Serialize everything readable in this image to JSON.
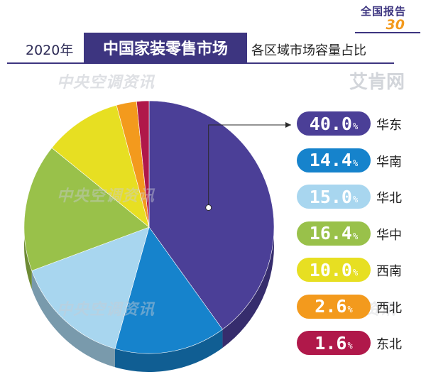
{
  "header": {
    "corner_tag": "全国报告",
    "corner_number": "30",
    "year": "2020年",
    "market": "中国家装零售市场",
    "subtitle": "各区域市场容量占比"
  },
  "watermarks": {
    "text": "中央空调资讯",
    "logo": "艾肯网"
  },
  "chart_data": {
    "type": "pie",
    "categories": [
      "华东",
      "华南",
      "华北",
      "华中",
      "西南",
      "西北",
      "东北"
    ],
    "values": [
      40.0,
      14.4,
      15.0,
      16.4,
      10.0,
      2.6,
      1.6
    ],
    "labels": [
      "40.0",
      "14.4",
      "15.0",
      "16.4",
      "10.0",
      "2.6",
      "1.6"
    ],
    "unit": "%",
    "colors": [
      "#4b3f97",
      "#1683cc",
      "#a8d6ef",
      "#99c14a",
      "#e7df22",
      "#f39a1d",
      "#b0184a"
    ]
  }
}
